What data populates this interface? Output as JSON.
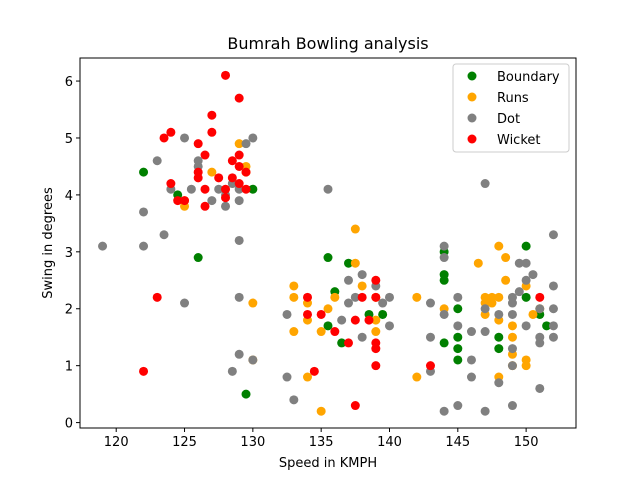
{
  "chart_data": {
    "type": "scatter",
    "title": "Bumrah Bowling analysis",
    "xlabel": "Speed in KMPH",
    "ylabel": "Swing in degrees",
    "xlim": [
      117.35,
      153.65
    ],
    "ylim": [
      -0.095,
      6.405
    ],
    "xticks": [
      120,
      125,
      130,
      135,
      140,
      145,
      150
    ],
    "yticks": [
      0,
      1,
      2,
      3,
      4,
      5,
      6
    ],
    "grid": false,
    "legend_position": "top-right",
    "series": [
      {
        "name": "Boundary",
        "color": "#008000",
        "points": [
          [
            122,
            4.4
          ],
          [
            124.5,
            4.0
          ],
          [
            126,
            2.9
          ],
          [
            130,
            4.1
          ],
          [
            129.5,
            0.5
          ],
          [
            135.5,
            2.9
          ],
          [
            136,
            2.3
          ],
          [
            137,
            2.8
          ],
          [
            136.5,
            1.4
          ],
          [
            135.5,
            1.7
          ],
          [
            138.5,
            1.9
          ],
          [
            139.5,
            1.9
          ],
          [
            144,
            3.0
          ],
          [
            144,
            2.6
          ],
          [
            144,
            2.5
          ],
          [
            145,
            2.0
          ],
          [
            145,
            1.5
          ],
          [
            145,
            1.3
          ],
          [
            145,
            1.1
          ],
          [
            144,
            1.4
          ],
          [
            148,
            1.5
          ],
          [
            148,
            1.3
          ],
          [
            150,
            3.1
          ],
          [
            150,
            2.2
          ],
          [
            151,
            1.9
          ],
          [
            151.5,
            1.7
          ]
        ]
      },
      {
        "name": "Runs",
        "color": "#ffa500",
        "points": [
          [
            125,
            3.8
          ],
          [
            125,
            3.9
          ],
          [
            127,
            4.4
          ],
          [
            129,
            4.9
          ],
          [
            129.5,
            4.4
          ],
          [
            129.5,
            4.5
          ],
          [
            130,
            2.1
          ],
          [
            130,
            1.1
          ],
          [
            133,
            2.2
          ],
          [
            133,
            2.4
          ],
          [
            133,
            1.6
          ],
          [
            134,
            1.8
          ],
          [
            134,
            2.1
          ],
          [
            134,
            0.8
          ],
          [
            135,
            1.6
          ],
          [
            135,
            0.2
          ],
          [
            135.5,
            2.0
          ],
          [
            136,
            2.2
          ],
          [
            137.5,
            3.4
          ],
          [
            137.5,
            2.8
          ],
          [
            138,
            2.4
          ],
          [
            139,
            1.6
          ],
          [
            139,
            2.2
          ],
          [
            139,
            1.8
          ],
          [
            142,
            2.2
          ],
          [
            142,
            0.8
          ],
          [
            144,
            2.0
          ],
          [
            146.5,
            2.8
          ],
          [
            147,
            2.2
          ],
          [
            147,
            2.1
          ],
          [
            147,
            1.9
          ],
          [
            147.5,
            2.1
          ],
          [
            147.5,
            2.2
          ],
          [
            148,
            3.1
          ],
          [
            148,
            2.2
          ],
          [
            148,
            1.8
          ],
          [
            148,
            0.8
          ],
          [
            148.5,
            2.9
          ],
          [
            148.5,
            2.5
          ],
          [
            149,
            1.7
          ],
          [
            149,
            1.5
          ],
          [
            149,
            1.2
          ],
          [
            149,
            1.0
          ],
          [
            150,
            1.1
          ],
          [
            150,
            1.0
          ],
          [
            150,
            2.4
          ],
          [
            150.5,
            1.9
          ],
          [
            151,
            2.0
          ]
        ]
      },
      {
        "name": "Dot",
        "color": "#808080",
        "points": [
          [
            119,
            3.1
          ],
          [
            122,
            3.7
          ],
          [
            122,
            3.1
          ],
          [
            123,
            4.6
          ],
          [
            123.5,
            3.3
          ],
          [
            124,
            4.1
          ],
          [
            125,
            5.0
          ],
          [
            125,
            2.1
          ],
          [
            125.5,
            4.1
          ],
          [
            126,
            4.6
          ],
          [
            126,
            4.5
          ],
          [
            127,
            3.9
          ],
          [
            127.5,
            4.1
          ],
          [
            128,
            4.0
          ],
          [
            128,
            3.8
          ],
          [
            128.5,
            4.2
          ],
          [
            128.5,
            0.9
          ],
          [
            129,
            3.9
          ],
          [
            129,
            3.2
          ],
          [
            129,
            4.1
          ],
          [
            129,
            2.2
          ],
          [
            129,
            1.2
          ],
          [
            129.5,
            4.9
          ],
          [
            130,
            5.0
          ],
          [
            130,
            1.1
          ],
          [
            132.5,
            1.9
          ],
          [
            132.5,
            0.8
          ],
          [
            133,
            0.4
          ],
          [
            135.5,
            4.1
          ],
          [
            136.5,
            1.8
          ],
          [
            137,
            2.5
          ],
          [
            137,
            2.1
          ],
          [
            137.5,
            2.2
          ],
          [
            138,
            2.6
          ],
          [
            138,
            1.5
          ],
          [
            139,
            2.4
          ],
          [
            139.5,
            2.1
          ],
          [
            140,
            2.2
          ],
          [
            140,
            1.7
          ],
          [
            143,
            2.1
          ],
          [
            143,
            1.5
          ],
          [
            143,
            0.9
          ],
          [
            144,
            3.1
          ],
          [
            144,
            2.9
          ],
          [
            144,
            1.9
          ],
          [
            144,
            0.2
          ],
          [
            145,
            2.2
          ],
          [
            145,
            1.7
          ],
          [
            145,
            0.3
          ],
          [
            146,
            1.6
          ],
          [
            146,
            1.1
          ],
          [
            146,
            0.8
          ],
          [
            147,
            4.2
          ],
          [
            147,
            2.0
          ],
          [
            147,
            1.6
          ],
          [
            147,
            0.2
          ],
          [
            148,
            1.9
          ],
          [
            148,
            0.7
          ],
          [
            149,
            2.2
          ],
          [
            149,
            2.1
          ],
          [
            149,
            1.9
          ],
          [
            149,
            1.3
          ],
          [
            149,
            1.0
          ],
          [
            149,
            0.3
          ],
          [
            149.5,
            2.8
          ],
          [
            149.5,
            2.3
          ],
          [
            150,
            2.8
          ],
          [
            150,
            2.5
          ],
          [
            150,
            1.7
          ],
          [
            150.5,
            2.6
          ],
          [
            151,
            1.5
          ],
          [
            151,
            1.4
          ],
          [
            151,
            0.6
          ],
          [
            151,
            2.0
          ],
          [
            152,
            3.3
          ],
          [
            152,
            2.4
          ],
          [
            152,
            2.0
          ],
          [
            152,
            1.7
          ],
          [
            152,
            1.5
          ]
        ]
      },
      {
        "name": "Wicket",
        "color": "#ff0000",
        "points": [
          [
            122,
            0.9
          ],
          [
            123,
            2.2
          ],
          [
            123.5,
            5.0
          ],
          [
            124,
            5.1
          ],
          [
            124,
            4.2
          ],
          [
            124.5,
            3.9
          ],
          [
            125,
            3.9
          ],
          [
            126,
            4.9
          ],
          [
            126,
            4.4
          ],
          [
            126,
            4.3
          ],
          [
            126.5,
            4.7
          ],
          [
            126.5,
            4.1
          ],
          [
            126.5,
            3.8
          ],
          [
            127,
            5.4
          ],
          [
            127,
            5.1
          ],
          [
            127.5,
            4.3
          ],
          [
            128,
            6.1
          ],
          [
            128,
            4.1
          ],
          [
            128,
            3.95
          ],
          [
            128.5,
            4.6
          ],
          [
            128.5,
            4.3
          ],
          [
            129,
            5.7
          ],
          [
            129,
            4.7
          ],
          [
            129,
            4.5
          ],
          [
            129,
            4.2
          ],
          [
            129.5,
            4.4
          ],
          [
            129.5,
            4.1
          ],
          [
            134,
            2.2
          ],
          [
            134,
            1.9
          ],
          [
            134.5,
            0.9
          ],
          [
            135,
            1.9
          ],
          [
            136,
            1.6
          ],
          [
            137,
            1.4
          ],
          [
            137.5,
            1.8
          ],
          [
            137.5,
            0.3
          ],
          [
            138,
            2.2
          ],
          [
            138.5,
            1.8
          ],
          [
            139,
            2.5
          ],
          [
            139,
            2.2
          ],
          [
            139,
            1.4
          ],
          [
            139,
            1.3
          ],
          [
            139,
            1.0
          ],
          [
            143,
            1.0
          ],
          [
            151,
            2.2
          ]
        ]
      }
    ]
  }
}
